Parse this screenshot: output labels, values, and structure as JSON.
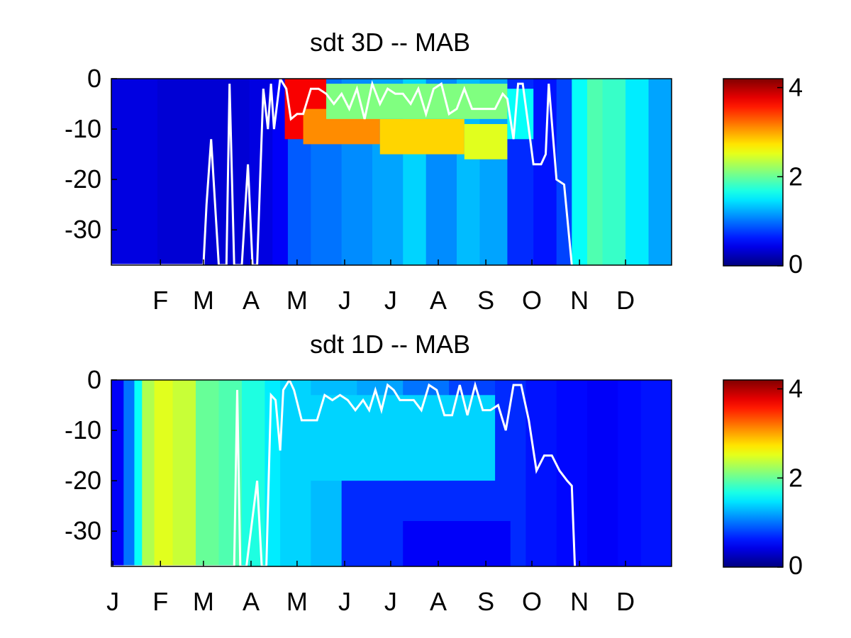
{
  "figure": {
    "background": "#ffffff",
    "colormap": "jet",
    "line_color": "#ffffff"
  },
  "chart_data": [
    {
      "type": "heatmap",
      "title": "sdt 3D   -- MAB",
      "xlabel": "",
      "ylabel": "",
      "x_range": [
        0,
        365
      ],
      "ylim": [
        -37,
        0
      ],
      "yticks": [
        0,
        -10,
        -20,
        -30
      ],
      "ytick_labels": [
        "0",
        "-10",
        "-20",
        "-30"
      ],
      "xticks": [
        32,
        60,
        91,
        121,
        152,
        182,
        213,
        244,
        274,
        305,
        335
      ],
      "xtick_labels": [
        "F",
        "M",
        "A",
        "M",
        "J",
        "J",
        "A",
        "S",
        "O",
        "N",
        "D"
      ],
      "clim": [
        0,
        4.2
      ],
      "colorbar_ticks": [
        0,
        2,
        4
      ],
      "colorbar_labels": [
        "0",
        "2",
        "4"
      ],
      "background_columns": {
        "x": [
          0,
          30,
          60,
          90,
          105,
          115,
          130,
          150,
          170,
          190,
          205,
          225,
          240,
          258,
          275,
          290,
          300,
          310,
          320,
          335,
          350,
          365
        ],
        "values": [
          0.4,
          0.35,
          0.35,
          0.4,
          0.5,
          0.9,
          1.0,
          1.1,
          1.2,
          1.4,
          1.1,
          1.3,
          1.2,
          0.7,
          0.6,
          0.8,
          1.6,
          1.9,
          1.8,
          1.5,
          1.2,
          1.1
        ]
      },
      "blobs": [
        {
          "x": [
            113,
            140
          ],
          "y": [
            -12,
            0
          ],
          "value": 3.7
        },
        {
          "x": [
            125,
            175
          ],
          "y": [
            -13,
            -6
          ],
          "value": 3.1
        },
        {
          "x": [
            175,
            230
          ],
          "y": [
            -15,
            -8
          ],
          "value": 2.8
        },
        {
          "x": [
            230,
            258
          ],
          "y": [
            -16,
            -9
          ],
          "value": 2.5
        },
        {
          "x": [
            140,
            258
          ],
          "y": [
            -8,
            -1
          ],
          "value": 2.1
        },
        {
          "x": [
            258,
            275
          ],
          "y": [
            -12,
            -2
          ],
          "value": 1.6
        }
      ],
      "line": {
        "x": [
          0,
          60,
          62,
          65,
          70,
          75,
          77,
          80,
          85,
          89,
          92,
          95,
          99,
          102,
          104,
          106,
          110,
          114,
          117,
          121,
          125,
          130,
          135,
          140,
          145,
          150,
          155,
          160,
          165,
          170,
          175,
          180,
          185,
          190,
          195,
          200,
          205,
          210,
          215,
          220,
          225,
          230,
          235,
          240,
          245,
          250,
          255,
          258,
          260,
          262,
          265,
          268,
          272,
          275,
          280,
          283,
          285,
          290,
          295,
          300
        ],
        "y": [
          -37,
          -37,
          -25,
          -12,
          -37,
          -37,
          -1,
          -37,
          -37,
          -17,
          -37,
          -37,
          -2,
          -10,
          -1,
          -10,
          0,
          -2,
          -8,
          -7,
          -7,
          -2,
          -2,
          -3,
          -5,
          -3,
          -6,
          -2,
          -8,
          -1,
          -5,
          -2,
          -3,
          -3,
          -5,
          -2,
          -7,
          -2,
          -1,
          -7,
          -6,
          -2,
          -6,
          -6,
          -6,
          -6,
          -3,
          -4,
          -8,
          -12,
          -1,
          -1,
          -10,
          -17,
          -17,
          -15,
          -1,
          -20,
          -21,
          -37
        ]
      }
    },
    {
      "type": "heatmap",
      "title": "sdt 1D   -- MAB",
      "xlabel": "",
      "ylabel": "",
      "x_range": [
        0,
        365
      ],
      "ylim": [
        -37,
        0
      ],
      "yticks": [
        0,
        -10,
        -20,
        -30
      ],
      "ytick_labels": [
        "0",
        "-10",
        "-20",
        "-30"
      ],
      "xticks": [
        1,
        32,
        60,
        91,
        121,
        152,
        182,
        213,
        244,
        274,
        305,
        335
      ],
      "xtick_labels": [
        "J",
        "F",
        "M",
        "A",
        "M",
        "J",
        "J",
        "A",
        "S",
        "O",
        "N",
        "D"
      ],
      "clim": [
        0,
        4.2
      ],
      "colorbar_ticks": [
        0,
        2,
        4
      ],
      "colorbar_labels": [
        "0",
        "2",
        "4"
      ],
      "background_columns": {
        "x": [
          0,
          8,
          15,
          20,
          28,
          40,
          55,
          70,
          85,
          100,
          110,
          130,
          160,
          190,
          220,
          250,
          270,
          290,
          310,
          330,
          345,
          365
        ],
        "values": [
          0.5,
          1.0,
          1.6,
          2.3,
          2.5,
          2.4,
          2.0,
          1.9,
          1.7,
          1.5,
          1.4,
          1.3,
          1.2,
          1.0,
          0.8,
          0.7,
          0.6,
          0.55,
          0.5,
          0.55,
          0.6,
          0.6
        ]
      },
      "blobs": [
        {
          "x": [
            120,
            250
          ],
          "y": [
            -20,
            -3
          ],
          "value": 1.4
        },
        {
          "x": [
            150,
            260
          ],
          "y": [
            -37,
            -20
          ],
          "value": 0.7
        },
        {
          "x": [
            190,
            260
          ],
          "y": [
            -37,
            -28
          ],
          "value": 0.5
        }
      ],
      "line": {
        "x": [
          0,
          80,
          82,
          84,
          86,
          88,
          95,
          98,
          101,
          104,
          107,
          110,
          112,
          116,
          119,
          124,
          129,
          134,
          139,
          144,
          149,
          154,
          159,
          164,
          168,
          172,
          176,
          180,
          184,
          188,
          192,
          197,
          202,
          207,
          212,
          217,
          222,
          227,
          232,
          237,
          242,
          247,
          252,
          257,
          262,
          267,
          272,
          277,
          282,
          287,
          292,
          297,
          300,
          302
        ],
        "y": [
          -37,
          -37,
          -2,
          -37,
          -37,
          -37,
          -20,
          -37,
          -37,
          -3,
          -4,
          -14,
          -2,
          0,
          -2,
          -8,
          -8,
          -8,
          -3,
          -4,
          -3,
          -4,
          -6,
          -4,
          -6,
          -2,
          -6,
          -1,
          -2,
          -4,
          -4,
          -4,
          -6,
          -1,
          -2,
          -7,
          -7,
          -1,
          -7,
          -1,
          -6,
          -6,
          -5,
          -10,
          -1,
          -1,
          -8,
          -18,
          -15,
          -15,
          -18,
          -20,
          -21,
          -37
        ]
      }
    }
  ]
}
